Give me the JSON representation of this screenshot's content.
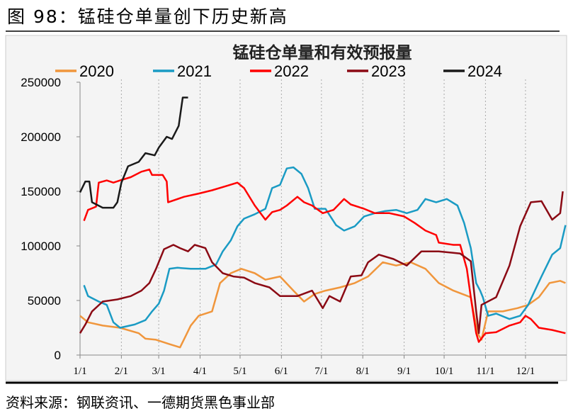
{
  "figure_title": "图 98：锰硅仓单量创下历史新高",
  "source": "资料来源：钢联资讯、一德期货黑色事业部",
  "chart_data": {
    "type": "line",
    "title": "锰硅仓单量和有效预报量",
    "xlabel": "",
    "ylabel": "",
    "ylim": [
      0,
      250000
    ],
    "yticks": [
      "0",
      "50000",
      "100000",
      "150000",
      "200000",
      "250000"
    ],
    "xticks": [
      "1/1",
      "2/1",
      "3/1",
      "4/1",
      "5/1",
      "6/1",
      "7/1",
      "8/1",
      "9/1",
      "10/1",
      "11/1",
      "12/1"
    ],
    "grid": "vertical dotted",
    "legend": "top",
    "series": [
      {
        "name": "2020",
        "color": "#f0963c",
        "points": [
          [
            "1/1",
            36000
          ],
          [
            "1/7",
            30000
          ],
          [
            "1/18",
            27000
          ],
          [
            "1/31",
            25000
          ],
          [
            "2/14",
            20000
          ],
          [
            "2/19",
            15000
          ],
          [
            "2/27",
            14000
          ],
          [
            "3/9",
            10000
          ],
          [
            "3/17",
            7000
          ],
          [
            "3/21",
            17000
          ],
          [
            "3/25",
            27000
          ],
          [
            "3/31",
            36000
          ],
          [
            "4/10",
            40000
          ],
          [
            "4/16",
            66000
          ],
          [
            "4/24",
            75000
          ],
          [
            "5/2",
            79000
          ],
          [
            "5/12",
            75000
          ],
          [
            "5/20",
            69000
          ],
          [
            "5/31",
            72000
          ],
          [
            "6/10",
            59000
          ],
          [
            "6/18",
            49000
          ],
          [
            "6/26",
            56000
          ],
          [
            "7/4",
            59000
          ],
          [
            "7/15",
            62000
          ],
          [
            "7/26",
            66000
          ],
          [
            "8/5",
            72000
          ],
          [
            "8/16",
            85000
          ],
          [
            "8/26",
            82000
          ],
          [
            "9/6",
            85000
          ],
          [
            "9/17",
            79000
          ],
          [
            "9/27",
            66000
          ],
          [
            "10/8",
            59000
          ],
          [
            "10/21",
            53000
          ],
          [
            "10/26",
            20000
          ],
          [
            "10/29",
            14000
          ],
          [
            "11/3",
            40000
          ],
          [
            "11/14",
            40000
          ],
          [
            "11/25",
            43000
          ],
          [
            "12/3",
            46000
          ],
          [
            "12/11",
            53000
          ],
          [
            "12/19",
            66000
          ],
          [
            "12/27",
            68000
          ],
          [
            "12/31",
            66000
          ]
        ]
      },
      {
        "name": "2021",
        "color": "#1a9bc4",
        "points": [
          [
            "1/4",
            64000
          ],
          [
            "1/7",
            54000
          ],
          [
            "1/15",
            49000
          ],
          [
            "1/21",
            46000
          ],
          [
            "1/26",
            30000
          ],
          [
            "1/31",
            25000
          ],
          [
            "2/11",
            28000
          ],
          [
            "2/19",
            32000
          ],
          [
            "2/24",
            40000
          ],
          [
            "3/1",
            47000
          ],
          [
            "3/5",
            59000
          ],
          [
            "3/9",
            79000
          ],
          [
            "3/15",
            80000
          ],
          [
            "3/25",
            79000
          ],
          [
            "4/5",
            79000
          ],
          [
            "4/13",
            83000
          ],
          [
            "4/18",
            95000
          ],
          [
            "4/24",
            105000
          ],
          [
            "4/29",
            118000
          ],
          [
            "5/4",
            125000
          ],
          [
            "5/12",
            129000
          ],
          [
            "5/20",
            134000
          ],
          [
            "5/25",
            153000
          ],
          [
            "5/31",
            156000
          ],
          [
            "6/5",
            171000
          ],
          [
            "6/10",
            172000
          ],
          [
            "6/16",
            166000
          ],
          [
            "6/21",
            153000
          ],
          [
            "6/26",
            134000
          ],
          [
            "7/4",
            134000
          ],
          [
            "7/12",
            119000
          ],
          [
            "7/18",
            114000
          ],
          [
            "7/26",
            118000
          ],
          [
            "8/2",
            127000
          ],
          [
            "8/10",
            130000
          ],
          [
            "8/18",
            132000
          ],
          [
            "8/26",
            133000
          ],
          [
            "9/3",
            130000
          ],
          [
            "9/11",
            133000
          ],
          [
            "9/17",
            143000
          ],
          [
            "9/25",
            140000
          ],
          [
            "10/3",
            143000
          ],
          [
            "10/11",
            137000
          ],
          [
            "10/16",
            121000
          ],
          [
            "10/21",
            98000
          ],
          [
            "10/25",
            66000
          ],
          [
            "10/28",
            59000
          ],
          [
            "10/30",
            53000
          ],
          [
            "11/3",
            36000
          ],
          [
            "11/9",
            38000
          ],
          [
            "11/19",
            33000
          ],
          [
            "11/27",
            36000
          ],
          [
            "12/3",
            46000
          ],
          [
            "12/8",
            59000
          ],
          [
            "12/13",
            72000
          ],
          [
            "12/21",
            92000
          ],
          [
            "12/27",
            98000
          ],
          [
            "12/31",
            119000
          ]
        ]
      },
      {
        "name": "2022",
        "color": "#ff0000",
        "points": [
          [
            "1/4",
            123000
          ],
          [
            "1/7",
            133000
          ],
          [
            "1/13",
            136000
          ],
          [
            "1/15",
            158000
          ],
          [
            "1/21",
            160000
          ],
          [
            "1/26",
            158000
          ],
          [
            "1/31",
            160000
          ],
          [
            "2/8",
            163000
          ],
          [
            "2/16",
            168000
          ],
          [
            "2/22",
            170000
          ],
          [
            "2/24",
            165000
          ],
          [
            "3/4",
            165000
          ],
          [
            "3/7",
            159000
          ],
          [
            "3/8",
            140000
          ],
          [
            "3/20",
            145000
          ],
          [
            "3/31",
            148000
          ],
          [
            "4/10",
            151000
          ],
          [
            "4/21",
            155000
          ],
          [
            "4/29",
            158000
          ],
          [
            "5/4",
            153000
          ],
          [
            "5/12",
            137000
          ],
          [
            "5/20",
            124000
          ],
          [
            "5/25",
            131000
          ],
          [
            "5/31",
            133000
          ],
          [
            "6/5",
            137000
          ],
          [
            "6/13",
            145000
          ],
          [
            "6/18",
            140000
          ],
          [
            "6/24",
            137000
          ],
          [
            "7/2",
            130000
          ],
          [
            "7/10",
            133000
          ],
          [
            "7/18",
            143000
          ],
          [
            "7/23",
            138000
          ],
          [
            "8/2",
            134000
          ],
          [
            "8/10",
            130000
          ],
          [
            "8/21",
            130000
          ],
          [
            "9/1",
            127000
          ],
          [
            "9/9",
            121000
          ],
          [
            "9/17",
            114000
          ],
          [
            "9/25",
            110000
          ],
          [
            "9/27",
            103000
          ],
          [
            "10/8",
            101000
          ],
          [
            "10/13",
            101000
          ],
          [
            "10/18",
            79000
          ],
          [
            "10/21",
            53000
          ],
          [
            "10/25",
            20000
          ],
          [
            "10/27",
            12000
          ],
          [
            "11/1",
            20000
          ],
          [
            "11/9",
            21000
          ],
          [
            "11/19",
            27000
          ],
          [
            "11/27",
            30000
          ],
          [
            "12/1",
            36000
          ],
          [
            "12/5",
            33000
          ],
          [
            "12/11",
            25000
          ],
          [
            "12/21",
            23000
          ],
          [
            "12/31",
            20000
          ]
        ]
      },
      {
        "name": "2023",
        "color": "#8b0a14",
        "points": [
          [
            "1/1",
            20000
          ],
          [
            "1/5",
            28000
          ],
          [
            "1/10",
            40000
          ],
          [
            "1/18",
            49000
          ],
          [
            "1/29",
            51000
          ],
          [
            "2/8",
            54000
          ],
          [
            "2/16",
            59000
          ],
          [
            "2/22",
            66000
          ],
          [
            "2/27",
            79000
          ],
          [
            "3/5",
            97000
          ],
          [
            "3/12",
            101000
          ],
          [
            "3/17",
            98000
          ],
          [
            "3/23",
            95000
          ],
          [
            "3/28",
            101000
          ],
          [
            "4/5",
            98000
          ],
          [
            "4/10",
            85000
          ],
          [
            "4/18",
            75000
          ],
          [
            "4/26",
            72000
          ],
          [
            "5/4",
            71000
          ],
          [
            "5/12",
            66000
          ],
          [
            "5/23",
            62000
          ],
          [
            "5/31",
            54000
          ],
          [
            "6/13",
            54000
          ],
          [
            "6/24",
            59000
          ],
          [
            "7/2",
            43000
          ],
          [
            "7/7",
            54000
          ],
          [
            "7/15",
            49000
          ],
          [
            "7/23",
            72000
          ],
          [
            "7/31",
            73000
          ],
          [
            "8/5",
            85000
          ],
          [
            "8/13",
            92000
          ],
          [
            "8/24",
            88000
          ],
          [
            "9/3",
            82000
          ],
          [
            "9/14",
            95000
          ],
          [
            "9/27",
            95000
          ],
          [
            "10/13",
            93000
          ],
          [
            "10/21",
            86000
          ],
          [
            "10/25",
            40000
          ],
          [
            "10/27",
            20000
          ],
          [
            "10/29",
            46000
          ],
          [
            "11/9",
            53000
          ],
          [
            "11/19",
            82000
          ],
          [
            "11/27",
            118000
          ],
          [
            "12/5",
            140000
          ],
          [
            "12/13",
            141000
          ],
          [
            "12/21",
            124000
          ],
          [
            "12/27",
            130000
          ],
          [
            "12/29",
            150000
          ]
        ]
      },
      {
        "name": "2024",
        "color": "#1a1a1a",
        "points": [
          [
            "1/1",
            149000
          ],
          [
            "1/5",
            159000
          ],
          [
            "1/8",
            159000
          ],
          [
            "1/10",
            140000
          ],
          [
            "1/18",
            135000
          ],
          [
            "1/26",
            135000
          ],
          [
            "1/29",
            140000
          ],
          [
            "2/1",
            158000
          ],
          [
            "2/6",
            173000
          ],
          [
            "2/14",
            177000
          ],
          [
            "2/19",
            185000
          ],
          [
            "2/26",
            183000
          ],
          [
            "3/1",
            190000
          ],
          [
            "3/7",
            200000
          ],
          [
            "3/11",
            198000
          ],
          [
            "3/16",
            210000
          ],
          [
            "3/19",
            236000
          ],
          [
            "3/23",
            236000
          ]
        ]
      }
    ]
  }
}
